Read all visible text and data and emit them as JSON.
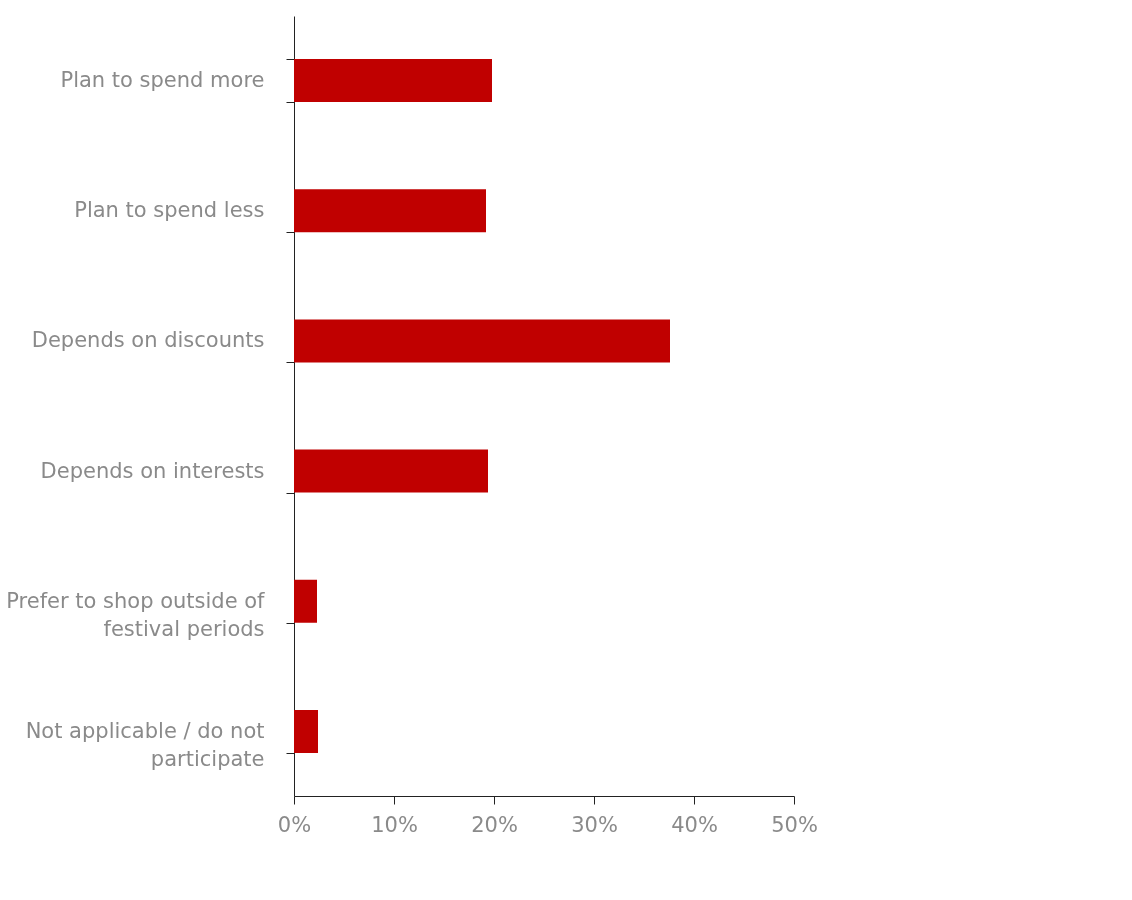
{
  "chart_data": {
    "type": "bar",
    "orientation": "horizontal",
    "categories": [
      "Plan to spend more",
      "Plan to spend less",
      "Depends on discounts",
      "Depends on interests",
      "Prefer to shop outside of festival periods",
      "Not applicable / do not participate"
    ],
    "values": [
      19.8,
      19.2,
      37.6,
      19.4,
      2.3,
      2.4
    ],
    "color": "#c00000",
    "xlim": [
      0,
      50
    ],
    "xticks": [
      {
        "value": 0,
        "label": "0%"
      },
      {
        "value": 10,
        "label": "10%"
      },
      {
        "value": 20,
        "label": "20%"
      },
      {
        "value": 30,
        "label": "30%"
      },
      {
        "value": 40,
        "label": "40%"
      },
      {
        "value": 50,
        "label": "50%"
      }
    ],
    "grid": false
  }
}
